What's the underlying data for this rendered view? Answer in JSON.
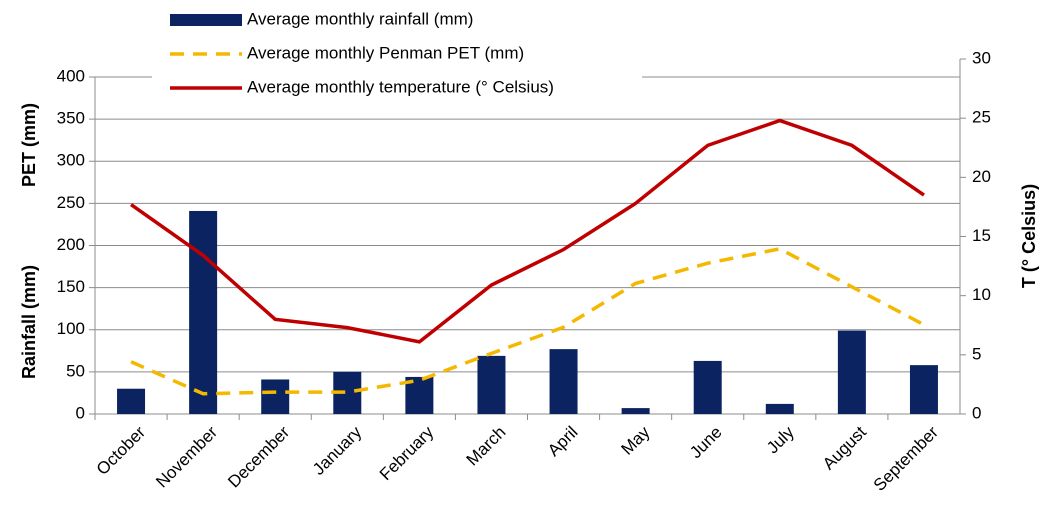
{
  "chart_data": {
    "type": "bar-line",
    "categories": [
      "October",
      "November",
      "December",
      "January",
      "February",
      "March",
      "April",
      "May",
      "June",
      "July",
      "August",
      "September"
    ],
    "series": [
      {
        "name": "Average monthly rainfall (mm)",
        "type": "bar",
        "color": "#0b2461",
        "values": [
          30,
          241,
          41,
          50,
          44,
          69,
          77,
          7,
          63,
          12,
          99,
          58
        ]
      },
      {
        "name": "Average monthly Penman PET (mm)",
        "type": "line",
        "dash": true,
        "color": "#f5b800",
        "values": [
          62,
          24,
          26,
          26,
          40,
          72,
          103,
          155,
          179,
          196,
          151,
          106
        ]
      },
      {
        "name": "Average monthly temperature (° Celsius)",
        "type": "line",
        "axis": "y2",
        "color": "#c00000",
        "values": [
          17.7,
          13.4,
          8.0,
          7.3,
          6.1,
          10.9,
          13.9,
          17.8,
          22.7,
          24.8,
          22.7,
          18.5
        ]
      }
    ],
    "ylabel": [
      "Rainfall  (mm)",
      "PET (mm)"
    ],
    "y2label": "T (° Celsius)",
    "ylim": [
      0,
      400
    ],
    "yticks": [
      0,
      50,
      100,
      150,
      200,
      250,
      300,
      350,
      400
    ],
    "y2lim": [
      0,
      30
    ],
    "y2ticks": [
      0,
      5,
      10,
      15,
      20,
      25,
      30
    ],
    "grid": true,
    "legend": "top"
  }
}
